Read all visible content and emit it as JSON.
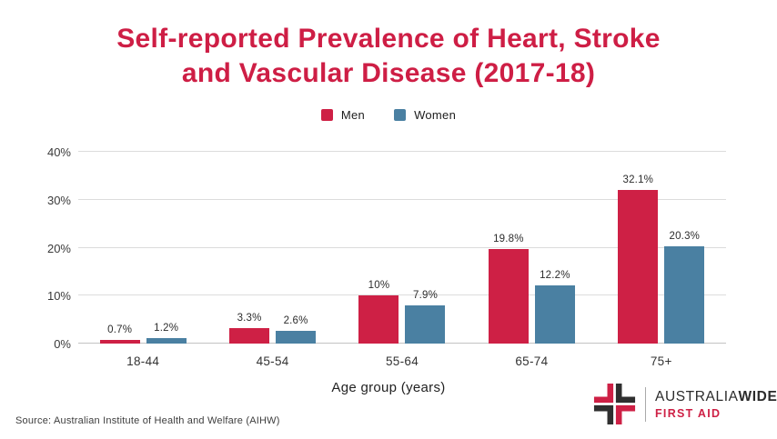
{
  "header": {
    "title_line1": "Self-reported Prevalence of Heart, Stroke",
    "title_line2": "and Vascular Disease (2017-18)"
  },
  "chart_data": {
    "type": "bar",
    "title": "Self-reported Prevalence of Heart, Stroke and Vascular Disease (2017-18)",
    "categories": [
      "18-44",
      "45-54",
      "55-64",
      "65-74",
      "75+"
    ],
    "series": [
      {
        "name": "Men",
        "color": "#ce2045",
        "values": [
          0.7,
          3.3,
          10,
          19.8,
          32.1
        ],
        "labels": [
          "0.7%",
          "3.3%",
          "10%",
          "19.8%",
          "32.1%"
        ]
      },
      {
        "name": "Women",
        "color": "#4a80a2",
        "values": [
          1.2,
          2.6,
          7.9,
          12.2,
          20.3
        ],
        "labels": [
          "1.2%",
          "2.6%",
          "7.9%",
          "12.2%",
          "20.3%"
        ]
      }
    ],
    "xlabel": "Age group (years)",
    "ylabel": "",
    "ylim": [
      0,
      40
    ],
    "yticks": [
      0,
      10,
      20,
      30,
      40
    ],
    "ytick_suffix": "%",
    "grid": true,
    "legend_position": "top"
  },
  "footer": {
    "source": "Source: Australian Institute of Health and Welfare (AIHW)"
  },
  "logo": {
    "brand_regular": "AUSTRALIA",
    "brand_bold": "WIDE",
    "tagline": "FIRST AID",
    "colors": {
      "red": "#ce2045",
      "dark": "#2f2f2f"
    }
  }
}
